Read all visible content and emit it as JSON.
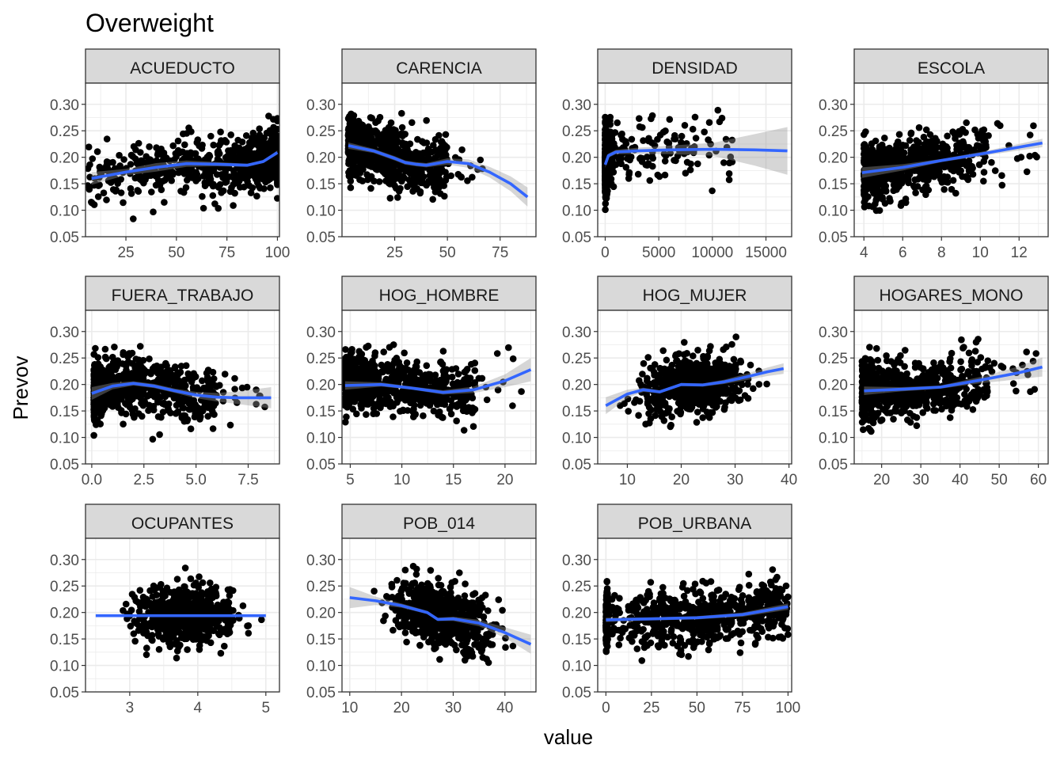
{
  "figure": {
    "title": "Overweight",
    "xlabel": "value",
    "ylabel": "Prevov"
  },
  "colors": {
    "strip_fill": "#d9d9d9",
    "point": "#000000",
    "smooth_line": "#3366ff",
    "ribbon": "#999999",
    "grid": "#ebebeb",
    "border": "#333333",
    "tick_text": "#4d4d4d"
  },
  "chart_data": {
    "type": "scatter",
    "subtype": "facet_wrap scatter with loess smooth and confidence ribbon",
    "y_ticks": [
      "0.05",
      "0.10",
      "0.15",
      "0.20",
      "0.25",
      "0.30"
    ],
    "ylim": [
      0.05,
      0.34
    ],
    "grid": true,
    "panels": [
      {
        "name": "ACUEDUCTO",
        "xlim": [
          5,
          101
        ],
        "xticks": [
          25,
          50,
          75,
          100
        ],
        "xtick_labels": [
          "25",
          "50",
          "75",
          "100"
        ],
        "points": {
          "x_range": [
            6,
            100
          ],
          "y_mean": 0.195,
          "y_sd": 0.03,
          "bias": "right",
          "n": 700
        },
        "smooth": [
          [
            8,
            0.16
          ],
          [
            25,
            0.172
          ],
          [
            40,
            0.181
          ],
          [
            55,
            0.188
          ],
          [
            70,
            0.187
          ],
          [
            85,
            0.185
          ],
          [
            93,
            0.192
          ],
          [
            100,
            0.209
          ]
        ],
        "band": [
          0.012,
          0.006,
          0.008,
          0.006,
          0.004,
          0.003,
          0.003,
          0.004
        ]
      },
      {
        "name": "CARENCIA",
        "xlim": [
          0,
          92
        ],
        "xticks": [
          25,
          50,
          75
        ],
        "xtick_labels": [
          "25",
          "50",
          "75"
        ],
        "points": {
          "x_range": [
            3,
            70
          ],
          "y_mean": 0.195,
          "y_sd": 0.03,
          "bias": "left",
          "n": 700
        },
        "smooth": [
          [
            3,
            0.222
          ],
          [
            15,
            0.212
          ],
          [
            25,
            0.198
          ],
          [
            30,
            0.19
          ],
          [
            35,
            0.187
          ],
          [
            40,
            0.185
          ],
          [
            50,
            0.192
          ],
          [
            60,
            0.188
          ],
          [
            70,
            0.172
          ],
          [
            80,
            0.15
          ],
          [
            88,
            0.125
          ]
        ],
        "band": [
          0.006,
          0.004,
          0.004,
          0.004,
          0.004,
          0.004,
          0.006,
          0.008,
          0.01,
          0.014,
          0.018
        ]
      },
      {
        "name": "DENSIDAD",
        "xlim": [
          -700,
          17400
        ],
        "xticks": [
          0,
          5000,
          10000,
          15000
        ],
        "xtick_labels": [
          "0",
          "5000",
          "10000",
          "15000"
        ],
        "points": {
          "x_range": [
            0,
            17000
          ],
          "y_mean": 0.2,
          "y_sd": 0.03,
          "bias": "left-extreme",
          "n": 700
        },
        "smooth": [
          [
            0,
            0.186
          ],
          [
            300,
            0.203
          ],
          [
            1000,
            0.21
          ],
          [
            3000,
            0.212
          ],
          [
            6000,
            0.214
          ],
          [
            10000,
            0.215
          ],
          [
            14000,
            0.214
          ],
          [
            17000,
            0.212
          ]
        ],
        "band": [
          0.006,
          0.004,
          0.004,
          0.006,
          0.008,
          0.012,
          0.03,
          0.045
        ]
      },
      {
        "name": "ESCOLA",
        "xlim": [
          3.5,
          13.5
        ],
        "xticks": [
          4,
          6,
          8,
          10,
          12
        ],
        "xtick_labels": [
          "4",
          "6",
          "8",
          "10",
          "12"
        ],
        "points": {
          "x_range": [
            4,
            13
          ],
          "y_mean": 0.195,
          "y_sd": 0.03,
          "bias": "left",
          "n": 700
        },
        "smooth": [
          [
            3.9,
            0.171
          ],
          [
            6,
            0.181
          ],
          [
            8,
            0.194
          ],
          [
            10,
            0.206
          ],
          [
            12,
            0.219
          ],
          [
            13.2,
            0.227
          ]
        ],
        "band": [
          0.01,
          0.006,
          0.003,
          0.004,
          0.006,
          0.008
        ]
      },
      {
        "name": "FUERA_TRABAJO",
        "xlim": [
          -0.3,
          9.0
        ],
        "xticks": [
          0.0,
          2.5,
          5.0,
          7.5
        ],
        "xtick_labels": [
          "0.0",
          "2.5",
          "5.0",
          "7.5"
        ],
        "points": {
          "x_range": [
            0.1,
            8.5
          ],
          "y_mean": 0.195,
          "y_sd": 0.03,
          "bias": "left",
          "n": 700
        },
        "smooth": [
          [
            0,
            0.183
          ],
          [
            1,
            0.197
          ],
          [
            2,
            0.202
          ],
          [
            3,
            0.197
          ],
          [
            4,
            0.188
          ],
          [
            5,
            0.18
          ],
          [
            6,
            0.176
          ],
          [
            7,
            0.175
          ],
          [
            8.6,
            0.175
          ]
        ],
        "band": [
          0.012,
          0.006,
          0.004,
          0.004,
          0.004,
          0.006,
          0.008,
          0.012,
          0.02
        ]
      },
      {
        "name": "HOG_HOMBRE",
        "xlim": [
          4.2,
          23
        ],
        "xticks": [
          5,
          10,
          15,
          20
        ],
        "xtick_labels": [
          "5",
          "10",
          "15",
          "20"
        ],
        "points": {
          "x_range": [
            4.5,
            22.5
          ],
          "y_mean": 0.195,
          "y_sd": 0.03,
          "bias": "left",
          "n": 700
        },
        "smooth": [
          [
            4.5,
            0.198
          ],
          [
            8,
            0.2
          ],
          [
            11,
            0.193
          ],
          [
            14,
            0.185
          ],
          [
            17,
            0.19
          ],
          [
            20,
            0.207
          ],
          [
            22.5,
            0.228
          ]
        ],
        "band": [
          0.008,
          0.004,
          0.003,
          0.004,
          0.006,
          0.012,
          0.022
        ]
      },
      {
        "name": "HOG_MUJER",
        "xlim": [
          4.5,
          40.5
        ],
        "xticks": [
          10,
          20,
          30,
          40
        ],
        "xtick_labels": [
          "10",
          "20",
          "30",
          "40"
        ],
        "points": {
          "x_range": [
            5,
            39
          ],
          "y_mean": 0.195,
          "y_sd": 0.03,
          "bias": "center",
          "n": 700
        },
        "smooth": [
          [
            6,
            0.16
          ],
          [
            10,
            0.182
          ],
          [
            13,
            0.19
          ],
          [
            16,
            0.186
          ],
          [
            20,
            0.2
          ],
          [
            24,
            0.199
          ],
          [
            28,
            0.205
          ],
          [
            32,
            0.214
          ],
          [
            36,
            0.224
          ],
          [
            39,
            0.23
          ]
        ],
        "band": [
          0.016,
          0.008,
          0.004,
          0.003,
          0.003,
          0.003,
          0.004,
          0.006,
          0.008,
          0.01
        ]
      },
      {
        "name": "HOGARES_MONO",
        "xlim": [
          13,
          62.5
        ],
        "xticks": [
          20,
          30,
          40,
          50,
          60
        ],
        "xtick_labels": [
          "20",
          "30",
          "40",
          "50",
          "60"
        ],
        "points": {
          "x_range": [
            15,
            61
          ],
          "y_mean": 0.195,
          "y_sd": 0.03,
          "bias": "left",
          "n": 700
        },
        "smooth": [
          [
            15.5,
            0.188
          ],
          [
            25,
            0.191
          ],
          [
            35,
            0.195
          ],
          [
            45,
            0.208
          ],
          [
            55,
            0.222
          ],
          [
            61,
            0.233
          ]
        ],
        "band": [
          0.008,
          0.004,
          0.003,
          0.006,
          0.012,
          0.018
        ]
      },
      {
        "name": "OCUPANTES",
        "xlim": [
          2.35,
          5.2
        ],
        "xticks": [
          3,
          4,
          5
        ],
        "xtick_labels": [
          "3",
          "4",
          "5"
        ],
        "points": {
          "x_range": [
            2.5,
            5.1
          ],
          "y_mean": 0.195,
          "y_sd": 0.03,
          "bias": "center",
          "n": 700
        },
        "smooth": [
          [
            2.5,
            0.194
          ],
          [
            5.0,
            0.194
          ]
        ],
        "band": [
          0.002,
          0.002
        ]
      },
      {
        "name": "POB_014",
        "xlim": [
          8.5,
          46
        ],
        "xticks": [
          10,
          20,
          30,
          40
        ],
        "xtick_labels": [
          "10",
          "20",
          "30",
          "40"
        ],
        "points": {
          "x_range": [
            10,
            45
          ],
          "y_mean": 0.2,
          "y_sd": 0.03,
          "bias": "center",
          "n": 700
        },
        "smooth": [
          [
            10,
            0.228
          ],
          [
            15,
            0.222
          ],
          [
            20,
            0.213
          ],
          [
            25,
            0.2
          ],
          [
            27,
            0.187
          ],
          [
            30,
            0.188
          ],
          [
            35,
            0.18
          ],
          [
            40,
            0.162
          ],
          [
            45,
            0.14
          ]
        ],
        "band": [
          0.02,
          0.008,
          0.004,
          0.003,
          0.003,
          0.004,
          0.006,
          0.01,
          0.018
        ]
      },
      {
        "name": "POB_URBANA",
        "xlim": [
          -4.5,
          102
        ],
        "xticks": [
          0,
          25,
          50,
          75,
          100
        ],
        "xtick_labels": [
          "0",
          "25",
          "50",
          "75",
          "100"
        ],
        "points": {
          "x_range": [
            0,
            100
          ],
          "y_mean": 0.195,
          "y_sd": 0.03,
          "bias": "urban",
          "n": 700
        },
        "smooth": [
          [
            0,
            0.186
          ],
          [
            25,
            0.188
          ],
          [
            50,
            0.19
          ],
          [
            75,
            0.196
          ],
          [
            100,
            0.211
          ]
        ],
        "band": [
          0.004,
          0.003,
          0.003,
          0.004,
          0.006
        ]
      }
    ]
  }
}
